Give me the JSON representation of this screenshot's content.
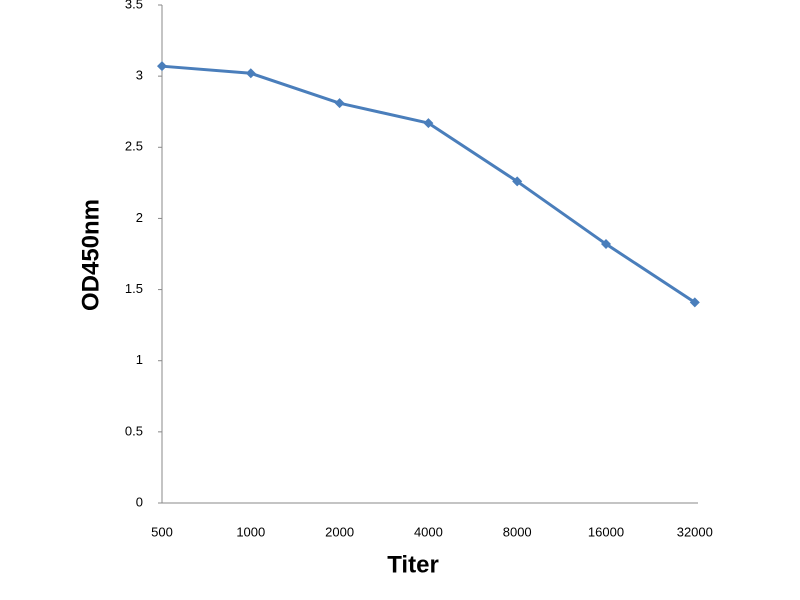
{
  "chart_data": {
    "type": "line",
    "x_label": "Titer",
    "y_label": "OD450nm",
    "categories": [
      "500",
      "1000",
      "2000",
      "4000",
      "8000",
      "16000",
      "32000"
    ],
    "series": [
      {
        "name": "OD450nm",
        "color": "#4a7ebb",
        "values": [
          3.07,
          3.02,
          2.81,
          2.67,
          2.26,
          1.82,
          1.41
        ]
      }
    ],
    "ylim": [
      0,
      3.5
    ],
    "yticks": [
      0,
      0.5,
      1,
      1.5,
      2,
      2.5,
      3,
      3.5
    ],
    "grid": false
  }
}
